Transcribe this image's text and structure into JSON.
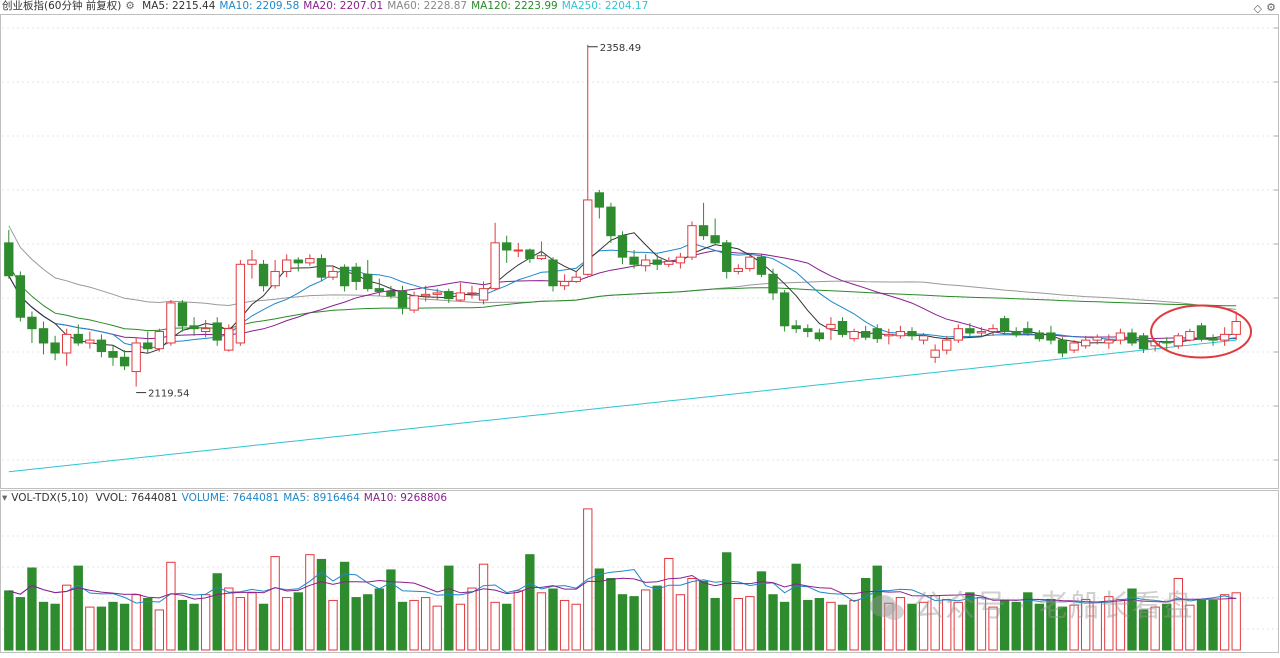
{
  "header": {
    "title": "创业板指(60分钟 前复权)",
    "ma_items": [
      {
        "label": "MA5: 2215.44",
        "color": "#333333"
      },
      {
        "label": "MA10: 2209.58",
        "color": "#1f88c9"
      },
      {
        "label": "MA20: 2207.01",
        "color": "#8b1f8f"
      },
      {
        "label": "MA60: 2228.87",
        "color": "#888888"
      },
      {
        "label": "MA120: 2223.99",
        "color": "#2a8a2a"
      },
      {
        "label": "MA250: 2204.17",
        "color": "#2ec5d3"
      }
    ]
  },
  "volume_header": {
    "title": "VOL-TDX(5,10)",
    "items": [
      {
        "label": "VVOL: 7644081",
        "color": "#333333"
      },
      {
        "label": "VOLUME: 7644081",
        "color": "#1f88c9"
      },
      {
        "label": "MA5: 8916464",
        "color": "#1f88c9"
      },
      {
        "label": "MA10: 9268806",
        "color": "#8b1f8f"
      }
    ]
  },
  "watermark": "公众号 · 老船长看盘",
  "colors": {
    "up": "#e0393e",
    "down": "#2e8b2e",
    "ma5": "#333333",
    "ma10": "#1f88c9",
    "ma20": "#8b1f8f",
    "ma60": "#999999",
    "ma120": "#2a8a2a",
    "ma250": "#2ec5d3",
    "circle": "#e0393e",
    "grid": "#dcdcdc"
  },
  "chart_data": {
    "type": "candlestick",
    "annotations": [
      {
        "text": "2358.49",
        "kind": "high"
      },
      {
        "text": "2119.54",
        "kind": "low"
      }
    ],
    "price_range": [
      2050,
      2380
    ],
    "candles": [
      [
        2220.0,
        2197.0,
        2229.0,
        2195.0
      ],
      [
        2197.0,
        2168.0,
        2200.0,
        2165.0
      ],
      [
        2168.0,
        2160.0,
        2172.0,
        2150.0
      ],
      [
        2160.0,
        2150.0,
        2165.0,
        2142.0
      ],
      [
        2150.0,
        2143.0,
        2155.0,
        2138.0
      ],
      [
        2143.0,
        2156.0,
        2160.0,
        2134.0
      ],
      [
        2156.0,
        2150.0,
        2163.0,
        2148.0
      ],
      [
        2150.0,
        2152.0,
        2158.0,
        2146.0
      ],
      [
        2152.0,
        2144.0,
        2156.0,
        2140.0
      ],
      [
        2144.0,
        2140.0,
        2148.0,
        2134.0
      ],
      [
        2140.0,
        2134.0,
        2145.0,
        2131.0
      ],
      [
        2130.0,
        2150.0,
        2154.0,
        2119.5
      ],
      [
        2150.0,
        2146.0,
        2158.0,
        2143.0
      ],
      [
        2146.0,
        2158.0,
        2160.0,
        2144.0
      ],
      [
        2150.0,
        2178.0,
        2180.0,
        2148.0
      ],
      [
        2178.0,
        2162.0,
        2180.0,
        2158.0
      ],
      [
        2162.0,
        2160.0,
        2168.0,
        2155.0
      ],
      [
        2158.0,
        2160.0,
        2166.0,
        2154.0
      ],
      [
        2164.0,
        2152.0,
        2168.0,
        2148.0
      ],
      [
        2145.0,
        2160.0,
        2163.0,
        2144.0
      ],
      [
        2150.0,
        2205.0,
        2208.0,
        2148.0
      ],
      [
        2205.0,
        2208.0,
        2215.0,
        2195.0
      ],
      [
        2205.0,
        2190.0,
        2208.0,
        2186.0
      ],
      [
        2190.0,
        2200.0,
        2208.0,
        2188.0
      ],
      [
        2200.0,
        2208.0,
        2212.0,
        2196.0
      ],
      [
        2208.0,
        2206.0,
        2210.0,
        2200.0
      ],
      [
        2206.0,
        2209.0,
        2212.0,
        2204.0
      ],
      [
        2209.0,
        2196.0,
        2212.0,
        2193.0
      ],
      [
        2196.0,
        2200.0,
        2204.0,
        2194.0
      ],
      [
        2203.0,
        2190.0,
        2205.0,
        2186.0
      ],
      [
        2203.0,
        2193.0,
        2206.0,
        2187.0
      ],
      [
        2198.0,
        2188.0,
        2208.0,
        2186.0
      ],
      [
        2188.0,
        2186.0,
        2195.0,
        2183.0
      ],
      [
        2186.0,
        2183.0,
        2190.0,
        2181.0
      ],
      [
        2186.0,
        2175.0,
        2190.0,
        2170.0
      ],
      [
        2173.0,
        2183.0,
        2186.0,
        2171.0
      ],
      [
        2183.0,
        2184.0,
        2190.0,
        2179.0
      ],
      [
        2184.0,
        2185.0,
        2188.0,
        2180.0
      ],
      [
        2186.0,
        2181.0,
        2188.0,
        2178.0
      ],
      [
        2180.0,
        2185.0,
        2192.0,
        2179.0
      ],
      [
        2185.0,
        2185.0,
        2190.0,
        2181.0
      ],
      [
        2180.0,
        2188.0,
        2193.0,
        2177.0
      ],
      [
        2188.0,
        2220.0,
        2234.0,
        2187.0
      ],
      [
        2220.0,
        2215.0,
        2225.0,
        2206.0
      ],
      [
        2215.0,
        2215.0,
        2220.0,
        2210.0
      ],
      [
        2215.0,
        2209.0,
        2216.0,
        2206.0
      ],
      [
        2209.0,
        2211.0,
        2221.0,
        2208.0
      ],
      [
        2208.0,
        2190.0,
        2210.0,
        2186.0
      ],
      [
        2190.0,
        2193.0,
        2198.0,
        2187.0
      ],
      [
        2193.0,
        2196.0,
        2200.0,
        2192.0
      ],
      [
        2198.0,
        2250.0,
        2358.5,
        2197.0
      ],
      [
        2255.0,
        2245.0,
        2257.0,
        2237.0
      ],
      [
        2245.0,
        2225.0,
        2248.0,
        2220.0
      ],
      [
        2225.0,
        2210.0,
        2228.0,
        2205.0
      ],
      [
        2210.0,
        2205.0,
        2215.0,
        2202.0
      ],
      [
        2204.0,
        2208.0,
        2212.0,
        2200.0
      ],
      [
        2208.0,
        2205.0,
        2212.0,
        2201.0
      ],
      [
        2205.0,
        2207.0,
        2210.0,
        2203.0
      ],
      [
        2206.0,
        2210.0,
        2213.0,
        2202.0
      ],
      [
        2210.0,
        2232.0,
        2235.0,
        2208.0
      ],
      [
        2232.0,
        2225.0,
        2248.0,
        2222.0
      ],
      [
        2225.0,
        2220.0,
        2237.0,
        2219.0
      ],
      [
        2220.0,
        2200.0,
        2222.0,
        2195.0
      ],
      [
        2200.0,
        2202.0,
        2205.0,
        2198.0
      ],
      [
        2202.0,
        2210.0,
        2212.0,
        2200.0
      ],
      [
        2210.0,
        2198.0,
        2212.0,
        2196.0
      ],
      [
        2198.0,
        2185.0,
        2202.0,
        2180.0
      ],
      [
        2185.0,
        2162.0,
        2187.0,
        2158.0
      ],
      [
        2162.0,
        2160.0,
        2166.0,
        2157.0
      ],
      [
        2160.0,
        2158.0,
        2163.0,
        2154.0
      ],
      [
        2157.0,
        2153.0,
        2160.0,
        2151.0
      ],
      [
        2160.0,
        2163.0,
        2168.0,
        2152.0
      ],
      [
        2165.0,
        2156.0,
        2168.0,
        2154.0
      ],
      [
        2153.0,
        2158.0,
        2160.0,
        2151.0
      ],
      [
        2158.0,
        2154.0,
        2162.0,
        2152.0
      ],
      [
        2160.0,
        2153.0,
        2163.0,
        2150.0
      ],
      [
        2155.0,
        2156.0,
        2160.0,
        2149.0
      ],
      [
        2155.0,
        2158.0,
        2162.0,
        2153.0
      ],
      [
        2158.0,
        2155.0,
        2161.0,
        2152.0
      ],
      [
        2152.0,
        2155.0,
        2157.0,
        2149.0
      ],
      [
        2140.0,
        2145.0,
        2149.0,
        2136.0
      ],
      [
        2145.0,
        2152.0,
        2155.0,
        2142.0
      ],
      [
        2152.0,
        2160.0,
        2163.0,
        2150.0
      ],
      [
        2160.0,
        2157.0,
        2164.0,
        2154.0
      ],
      [
        2157.0,
        2158.0,
        2161.0,
        2154.0
      ],
      [
        2158.0,
        2160.0,
        2163.0,
        2155.0
      ],
      [
        2167.0,
        2158.0,
        2169.0,
        2156.0
      ],
      [
        2158.0,
        2156.0,
        2161.0,
        2154.0
      ],
      [
        2160.0,
        2157.0,
        2165.0,
        2155.0
      ],
      [
        2157.0,
        2153.0,
        2159.0,
        2151.0
      ],
      [
        2157.0,
        2152.0,
        2162.0,
        2149.0
      ],
      [
        2152.0,
        2143.0,
        2154.0,
        2140.0
      ],
      [
        2145.0,
        2150.0,
        2152.0,
        2143.0
      ],
      [
        2148.0,
        2152.0,
        2155.0,
        2146.0
      ],
      [
        2152.0,
        2154.0,
        2156.0,
        2149.0
      ],
      [
        2150.0,
        2152.0,
        2156.0,
        2146.0
      ],
      [
        2152.0,
        2157.0,
        2160.0,
        2149.0
      ],
      [
        2157.0,
        2150.0,
        2160.0,
        2148.0
      ],
      [
        2155.0,
        2146.0,
        2157.0,
        2143.0
      ],
      [
        2148.0,
        2151.0,
        2152.0,
        2144.0
      ],
      [
        2151.0,
        2150.0,
        2154.0,
        2145.0
      ],
      [
        2148.0,
        2155.0,
        2157.0,
        2146.0
      ],
      [
        2152.0,
        2158.0,
        2160.0,
        2151.0
      ],
      [
        2162.0,
        2153.0,
        2164.0,
        2151.0
      ],
      [
        2153.0,
        2152.0,
        2156.0,
        2148.0
      ],
      [
        2152.0,
        2156.0,
        2161.0,
        2148.0
      ],
      [
        2156.0,
        2165.0,
        2172.0,
        2152.0
      ]
    ],
    "volume": [
      62,
      55,
      86,
      50,
      48,
      68,
      88,
      45,
      45,
      50,
      48,
      58,
      54,
      42,
      92,
      52,
      48,
      58,
      80,
      65,
      55,
      60,
      48,
      98,
      55,
      60,
      100,
      95,
      52,
      92,
      55,
      58,
      64,
      84,
      50,
      52,
      55,
      46,
      88,
      48,
      65,
      90,
      50,
      48,
      62,
      100,
      60,
      64,
      52,
      48,
      148,
      85,
      75,
      58,
      56,
      63,
      67,
      96,
      58,
      75,
      72,
      54,
      102,
      54,
      56,
      82,
      58,
      50,
      90,
      52,
      54,
      50,
      47,
      52,
      75,
      88,
      49,
      55,
      48,
      50,
      57,
      53,
      50,
      60,
      55,
      45,
      52,
      50,
      60,
      48,
      53,
      45,
      47,
      53,
      50,
      56,
      53,
      64,
      42,
      45,
      48,
      75,
      47,
      52,
      52,
      58,
      60
    ]
  }
}
